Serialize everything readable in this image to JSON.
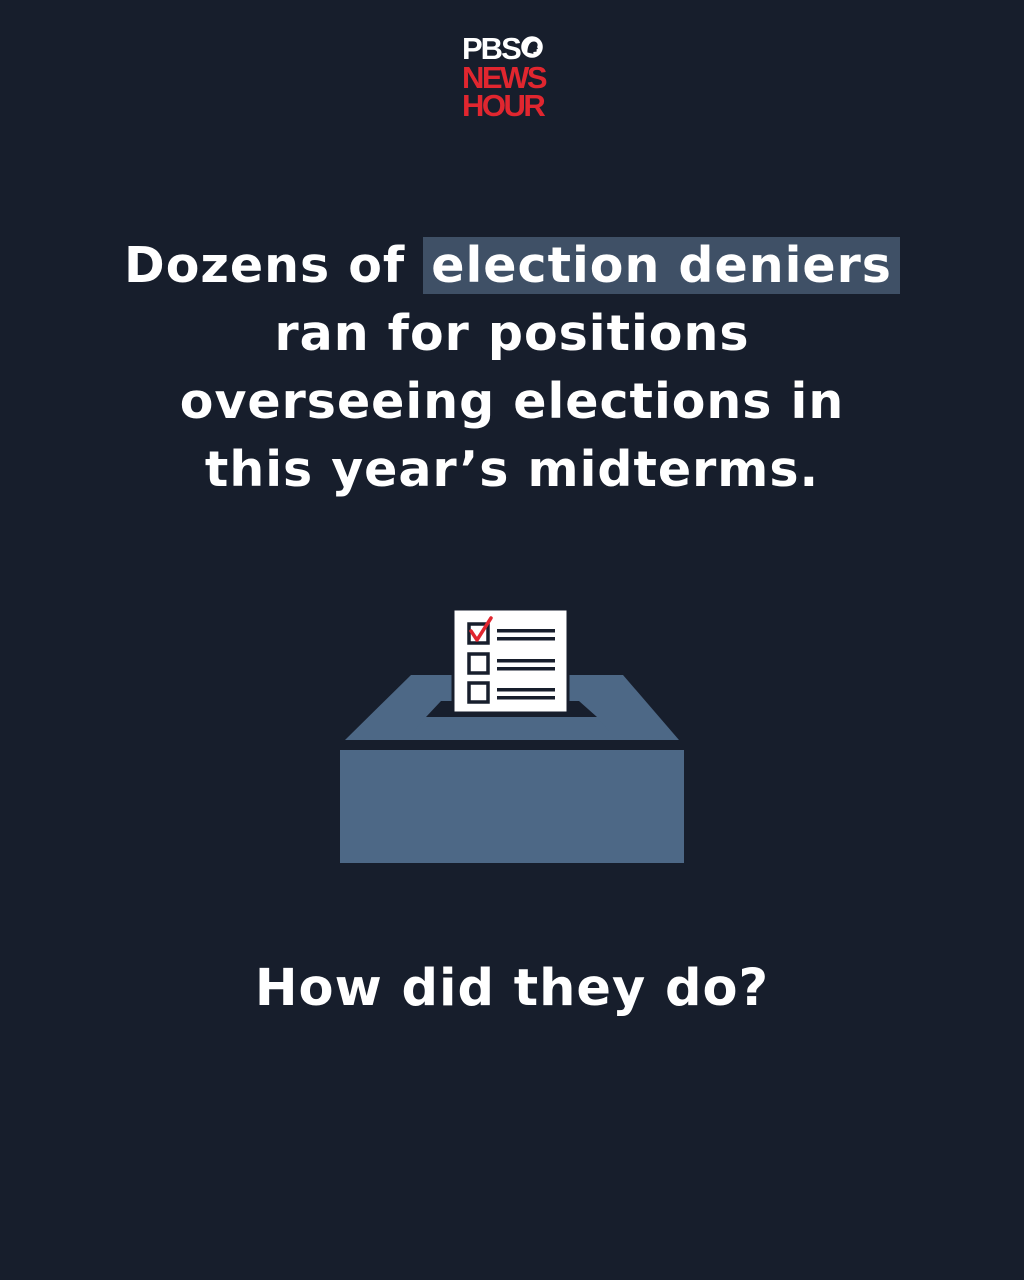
{
  "colors": {
    "background": "#171e2c",
    "text": "#ffffff",
    "logo_red": "#e1262f",
    "highlight": "#3f5066",
    "box": "#4d6886",
    "paper": "#ffffff",
    "ink": "#171e2c",
    "check": "#e1262f"
  },
  "logo": {
    "pbs": "PBS",
    "news": "NEWS",
    "hour": "HOUR"
  },
  "headline": {
    "line1_prefix": "Dozens of ",
    "line1_highlight": "election deniers",
    "line2": "ran for positions",
    "line3": "overseeing elections in",
    "line4": "this year’s midterms."
  },
  "illustration": {
    "icon": "ballot-box-icon",
    "checked_box": "checkbox-checked-icon",
    "unchecked_box": "checkbox-empty-icon"
  },
  "question": "How did they do?"
}
